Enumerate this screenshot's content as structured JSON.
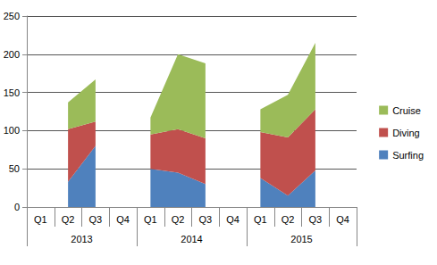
{
  "chart_data": {
    "type": "area",
    "stacked": true,
    "grid": true,
    "legend": "right",
    "categories": [
      "Q1",
      "Q2",
      "Q3",
      "Q4",
      "Q1",
      "Q2",
      "Q3",
      "Q4",
      "Q1",
      "Q2",
      "Q3",
      "Q4"
    ],
    "category_groups": [
      "2013",
      "2014",
      "2015"
    ],
    "ylim": [
      0,
      250
    ],
    "yticks": [
      0,
      50,
      100,
      150,
      200,
      250
    ],
    "series": [
      {
        "name": "Surfing",
        "color": "#4F81BD",
        "values": [
          null,
          33,
          80,
          null,
          50,
          45,
          30,
          null,
          38,
          15,
          48,
          null
        ]
      },
      {
        "name": "Diving",
        "color": "#C0504D",
        "values": [
          null,
          69,
          32,
          null,
          45,
          57,
          60,
          null,
          60,
          76,
          80,
          null
        ]
      },
      {
        "name": "Cruise",
        "color": "#9BBB59",
        "values": [
          null,
          35,
          55,
          null,
          22,
          98,
          98,
          null,
          30,
          56,
          87,
          null
        ]
      }
    ]
  }
}
